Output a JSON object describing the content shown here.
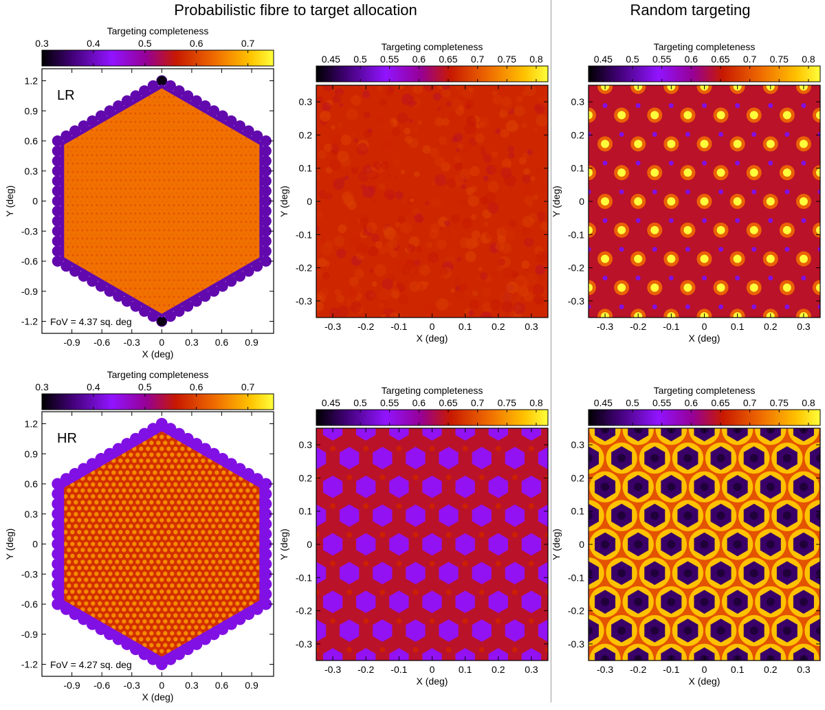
{
  "figure": {
    "section_titles": {
      "left": "Probabilistic fibre to target allocation",
      "right": "Random targeting"
    }
  },
  "chart_data": [
    {
      "id": "lr-full-probabilistic",
      "type": "heatmap",
      "title": "",
      "colorbar_label": "Targeting completeness",
      "colorbar_range": [
        0.3,
        0.75
      ],
      "colorbar_ticks": [
        0.3,
        0.4,
        0.5,
        0.6,
        0.7
      ],
      "colorbar_tick_labels": [
        "0.3",
        "0.4",
        "0.5",
        "0.6",
        "0.7"
      ],
      "xlabel": "X (deg)",
      "ylabel": "Y (deg)",
      "xlim": [
        -1.2,
        1.12
      ],
      "ylim": [
        -1.32,
        1.32
      ],
      "xticks": [
        -0.9,
        -0.6,
        -0.3,
        0,
        0.3,
        0.6,
        0.9
      ],
      "xtick_labels": [
        "-0.9",
        "-0.6",
        "-0.3",
        "0",
        "0.3",
        "0.6",
        "0.9"
      ],
      "yticks": [
        -1.2,
        -0.9,
        -0.6,
        -0.3,
        0,
        0.3,
        0.6,
        0.9,
        1.2
      ],
      "ytick_labels": [
        "-1.2",
        "-0.9",
        "-0.6",
        "-0.3",
        "0",
        "0.3",
        "0.6",
        "0.9",
        "1.2"
      ],
      "panel_label": "LR",
      "annotation": "FoV = 4.37 sq. deg",
      "field_shape": "hexagon",
      "hex_vertex_radius_deg": 1.2,
      "hex_center": [
        0,
        0
      ],
      "interior_completeness": 0.64,
      "edge_completeness": 0.39,
      "pole_completeness": 0.31,
      "pattern": "fine"
    },
    {
      "id": "lr-zoom-probabilistic",
      "type": "heatmap",
      "title": "",
      "colorbar_label": "Targeting completeness",
      "colorbar_range": [
        0.425,
        0.82
      ],
      "colorbar_ticks": [
        0.45,
        0.5,
        0.55,
        0.6,
        0.65,
        0.7,
        0.75,
        0.8
      ],
      "colorbar_tick_labels": [
        "0.45",
        "0.5",
        "0.55",
        "0.6",
        "0.65",
        "0.7",
        "0.75",
        "0.8"
      ],
      "xlabel": "X (deg)",
      "ylabel": "Y (deg)",
      "xlim": [
        -0.35,
        0.35
      ],
      "ylim": [
        -0.35,
        0.35
      ],
      "xticks": [
        -0.3,
        -0.2,
        -0.1,
        0,
        0.1,
        0.2,
        0.3
      ],
      "xtick_labels": [
        "-0.3",
        "-0.2",
        "-0.1",
        "0",
        "0.1",
        "0.2",
        "0.3"
      ],
      "yticks": [
        -0.3,
        -0.2,
        -0.1,
        0,
        0.1,
        0.2,
        0.3
      ],
      "ytick_labels": [
        "-0.3",
        "-0.2",
        "-0.1",
        "0",
        "0.1",
        "0.2",
        "0.3"
      ],
      "base_completeness": 0.665,
      "pattern": "uniform-noise"
    },
    {
      "id": "lr-zoom-random",
      "type": "heatmap",
      "title": "",
      "colorbar_label": "Targeting completeness",
      "colorbar_range": [
        0.425,
        0.82
      ],
      "colorbar_ticks": [
        0.45,
        0.5,
        0.55,
        0.6,
        0.65,
        0.7,
        0.75,
        0.8
      ],
      "colorbar_tick_labels": [
        "0.45",
        "0.5",
        "0.55",
        "0.6",
        "0.65",
        "0.7",
        "0.75",
        "0.8"
      ],
      "xlabel": "X (deg)",
      "ylabel": "Y (deg)",
      "xlim": [
        -0.35,
        0.35
      ],
      "ylim": [
        -0.35,
        0.35
      ],
      "xticks": [
        -0.3,
        -0.2,
        -0.1,
        0,
        0.1,
        0.2,
        0.3
      ],
      "xtick_labels": [
        "-0.3",
        "-0.2",
        "-0.1",
        "0",
        "0.1",
        "0.2",
        "0.3"
      ],
      "yticks": [
        -0.3,
        -0.2,
        -0.1,
        0,
        0.1,
        0.2,
        0.3
      ],
      "ytick_labels": [
        "-0.3",
        "-0.2",
        "-0.1",
        "0",
        "0.1",
        "0.2",
        "0.3"
      ],
      "base_completeness": 0.64,
      "peak_completeness": 0.82,
      "low_completeness": 0.53,
      "pattern": "spots"
    },
    {
      "id": "hr-full-probabilistic",
      "type": "heatmap",
      "title": "",
      "colorbar_label": "Targeting completeness",
      "colorbar_range": [
        0.3,
        0.75
      ],
      "colorbar_ticks": [
        0.3,
        0.4,
        0.5,
        0.6,
        0.7
      ],
      "colorbar_tick_labels": [
        "0.3",
        "0.4",
        "0.5",
        "0.6",
        "0.7"
      ],
      "xlabel": "X (deg)",
      "ylabel": "Y (deg)",
      "xlim": [
        -1.2,
        1.12
      ],
      "ylim": [
        -1.32,
        1.32
      ],
      "xticks": [
        -0.9,
        -0.6,
        -0.3,
        0,
        0.3,
        0.6,
        0.9
      ],
      "xtick_labels": [
        "-0.9",
        "-0.6",
        "-0.3",
        "0",
        "0.3",
        "0.6",
        "0.9"
      ],
      "yticks": [
        -1.2,
        -0.9,
        -0.6,
        -0.3,
        0,
        0.3,
        0.6,
        0.9,
        1.2
      ],
      "ytick_labels": [
        "-1.2",
        "-0.9",
        "-0.6",
        "-0.3",
        "0",
        "0.3",
        "0.6",
        "0.9",
        "1.2"
      ],
      "panel_label": "HR",
      "annotation": "FoV = 4.27 sq. deg",
      "field_shape": "hexagon",
      "hex_vertex_radius_deg": 1.2,
      "hex_center": [
        0,
        0
      ],
      "interior_completeness": 0.58,
      "edge_completeness": 0.42,
      "pole_completeness": 0.42,
      "pattern": "dotted"
    },
    {
      "id": "hr-zoom-probabilistic",
      "type": "heatmap",
      "title": "",
      "colorbar_label": "Targeting completeness",
      "colorbar_range": [
        0.425,
        0.82
      ],
      "colorbar_ticks": [
        0.45,
        0.5,
        0.55,
        0.6,
        0.65,
        0.7,
        0.75,
        0.8
      ],
      "colorbar_tick_labels": [
        "0.45",
        "0.5",
        "0.55",
        "0.6",
        "0.65",
        "0.7",
        "0.75",
        "0.8"
      ],
      "xlabel": "X (deg)",
      "ylabel": "Y (deg)",
      "xlim": [
        -0.35,
        0.35
      ],
      "ylim": [
        -0.35,
        0.35
      ],
      "xticks": [
        -0.3,
        -0.2,
        -0.1,
        0,
        0.1,
        0.2,
        0.3
      ],
      "xtick_labels": [
        "-0.3",
        "-0.2",
        "-0.1",
        "0",
        "0.1",
        "0.2",
        "0.3"
      ],
      "yticks": [
        -0.3,
        -0.2,
        -0.1,
        0,
        0.1,
        0.2,
        0.3
      ],
      "ytick_labels": [
        "-0.3",
        "-0.2",
        "-0.1",
        "0",
        "0.1",
        "0.2",
        "0.3"
      ],
      "base_completeness": 0.64,
      "cell_completeness": 0.55,
      "pattern": "hex-cells"
    },
    {
      "id": "hr-zoom-random",
      "type": "heatmap",
      "title": "",
      "colorbar_label": "Targeting completeness",
      "colorbar_range": [
        0.425,
        0.82
      ],
      "colorbar_ticks": [
        0.45,
        0.5,
        0.55,
        0.6,
        0.65,
        0.7,
        0.75,
        0.8
      ],
      "colorbar_tick_labels": [
        "0.45",
        "0.5",
        "0.55",
        "0.6",
        "0.65",
        "0.7",
        "0.75",
        "0.8"
      ],
      "xlabel": "X (deg)",
      "ylabel": "Y (deg)",
      "xlim": [
        -0.35,
        0.35
      ],
      "ylim": [
        -0.35,
        0.35
      ],
      "xticks": [
        -0.3,
        -0.2,
        -0.1,
        0,
        0.1,
        0.2,
        0.3
      ],
      "xtick_labels": [
        "-0.3",
        "-0.2",
        "-0.1",
        "0",
        "0.1",
        "0.2",
        "0.3"
      ],
      "yticks": [
        -0.3,
        -0.2,
        -0.1,
        0,
        0.1,
        0.2,
        0.3
      ],
      "ytick_labels": [
        "-0.3",
        "-0.2",
        "-0.1",
        "0",
        "0.1",
        "0.2",
        "0.3"
      ],
      "base_completeness": 0.7,
      "cell_completeness": 0.47,
      "pattern": "hex-cells-random"
    }
  ]
}
